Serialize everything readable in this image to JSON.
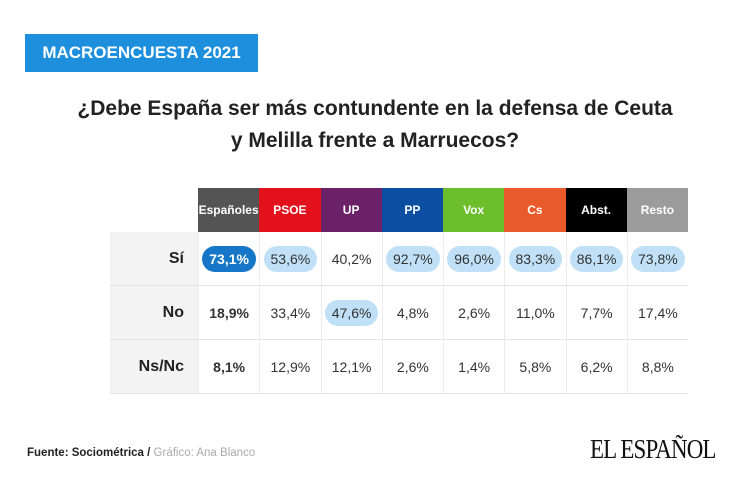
{
  "badge": "MACROENCUESTA 2021",
  "title_line1": "¿Debe España ser más contundente en la defensa de  Ceuta",
  "title_line2": "y Melilla frente a Marruecos?",
  "chart_data": {
    "type": "table",
    "columns": [
      {
        "label": "Españoles",
        "color": "#545454"
      },
      {
        "label": "PSOE",
        "color": "#e3111b"
      },
      {
        "label": "UP",
        "color": "#6b2167"
      },
      {
        "label": "PP",
        "color": "#0b4ea2"
      },
      {
        "label": "Vox",
        "color": "#6cbe2c"
      },
      {
        "label": "Cs",
        "color": "#ea5a2b"
      },
      {
        "label": "Abst.",
        "color": "#000000"
      },
      {
        "label": "Resto",
        "color": "#9c9c9c"
      }
    ],
    "rows": [
      {
        "label": "Sí",
        "values": [
          "73,1%",
          "53,6%",
          "40,2%",
          "92,7%",
          "96,0%",
          "83,3%",
          "86,1%",
          "73,8%"
        ],
        "highlight": [
          "dark",
          "light",
          "",
          "light",
          "light",
          "light",
          "light",
          "light"
        ]
      },
      {
        "label": "No",
        "values": [
          "18,9%",
          "33,4%",
          "47,6%",
          "4,8%",
          "2,6%",
          "11,0%",
          "7,7%",
          "17,4%"
        ],
        "highlight": [
          "",
          "",
          "light",
          "",
          "",
          "",
          "",
          ""
        ]
      },
      {
        "label": "Ns/Nc",
        "values": [
          "8,1%",
          "12,9%",
          "12,1%",
          "2,6%",
          "1,4%",
          "5,8%",
          "6,2%",
          "8,8%"
        ],
        "highlight": [
          "",
          "",
          "",
          "",
          "",
          "",
          "",
          ""
        ]
      }
    ]
  },
  "source_label": "Fuente: Sociométrica /",
  "credit": "Gráfico: Ana Blanco",
  "logo": "EL ESPAÑOL"
}
